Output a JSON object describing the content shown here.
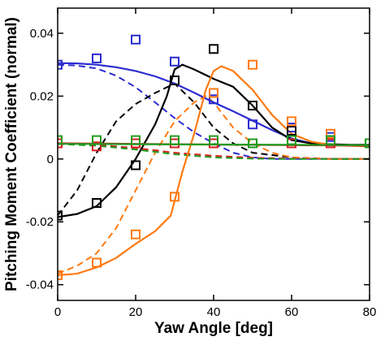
{
  "chart_data": {
    "type": "line",
    "title": "",
    "xlabel": "Yaw Angle [deg]",
    "ylabel": "Pitching Moment Coefficient (normal)",
    "xlim": [
      0,
      80
    ],
    "ylim": [
      -0.045,
      0.048
    ],
    "x_ticks": [
      0,
      20,
      40,
      60,
      80
    ],
    "y_ticks": [
      -0.04,
      -0.02,
      0,
      0.02,
      0.04
    ],
    "x_tick_labels": [
      "0",
      "20",
      "40",
      "60",
      "80"
    ],
    "y_tick_labels": [
      "-0.04",
      "-0.02",
      "0",
      "0.02",
      "0.04"
    ],
    "grid": false,
    "legend": "none",
    "series": [
      {
        "color": "#2c2cd0",
        "solid": [
          [
            0,
            0.0305
          ],
          [
            5,
            0.0304
          ],
          [
            10,
            0.03
          ],
          [
            15,
            0.0292
          ],
          [
            20,
            0.028
          ],
          [
            25,
            0.0263
          ],
          [
            30,
            0.024
          ],
          [
            35,
            0.0211
          ],
          [
            40,
            0.018
          ],
          [
            45,
            0.0152
          ],
          [
            50,
            0.0122
          ],
          [
            55,
            0.0092
          ],
          [
            60,
            0.0065
          ],
          [
            65,
            0.005
          ],
          [
            70,
            0.0045
          ],
          [
            75,
            0.0043
          ],
          [
            80,
            0.0042
          ]
        ],
        "dashed": [
          [
            0,
            0.03
          ],
          [
            5,
            0.0297
          ],
          [
            10,
            0.0288
          ],
          [
            15,
            0.0265
          ],
          [
            20,
            0.0228
          ],
          [
            25,
            0.018
          ],
          [
            30,
            0.013
          ],
          [
            35,
            0.0085
          ],
          [
            40,
            0.005
          ],
          [
            45,
            0.002
          ],
          [
            50,
            0.0005
          ],
          [
            55,
            0.0
          ],
          [
            60,
            0.0
          ],
          [
            70,
            0.0
          ],
          [
            80,
            0.0
          ]
        ],
        "markers": [
          [
            0,
            0.03
          ],
          [
            10,
            0.032
          ],
          [
            20,
            0.038
          ],
          [
            30,
            0.031
          ],
          [
            40,
            0.019
          ],
          [
            50,
            0.011
          ],
          [
            60,
            0.01
          ],
          [
            70,
            0.007
          ],
          [
            80,
            0.005
          ]
        ]
      },
      {
        "color": "#000000",
        "solid": [
          [
            0,
            -0.0185
          ],
          [
            5,
            -0.0175
          ],
          [
            10,
            -0.015
          ],
          [
            15,
            -0.009
          ],
          [
            20,
            0.0
          ],
          [
            25,
            0.011
          ],
          [
            28,
            0.02
          ],
          [
            30,
            0.0285
          ],
          [
            32,
            0.03
          ],
          [
            35,
            0.0285
          ],
          [
            40,
            0.0255
          ],
          [
            45,
            0.023
          ],
          [
            50,
            0.017
          ],
          [
            55,
            0.01
          ],
          [
            60,
            0.006
          ],
          [
            65,
            0.005
          ],
          [
            70,
            0.0047
          ],
          [
            75,
            0.0045
          ],
          [
            80,
            0.0045
          ]
        ],
        "dashed": [
          [
            0,
            -0.018
          ],
          [
            5,
            -0.01
          ],
          [
            10,
            0.002
          ],
          [
            15,
            0.012
          ],
          [
            20,
            0.0175
          ],
          [
            25,
            0.021
          ],
          [
            30,
            0.024
          ],
          [
            35,
            0.018
          ],
          [
            40,
            0.01
          ],
          [
            45,
            0.005
          ],
          [
            50,
            0.002
          ],
          [
            60,
            0.0005
          ],
          [
            70,
            0.0
          ],
          [
            80,
            0.0
          ]
        ],
        "markers": [
          [
            0,
            -0.018
          ],
          [
            10,
            -0.014
          ],
          [
            20,
            -0.002
          ],
          [
            30,
            0.025
          ],
          [
            40,
            0.035
          ],
          [
            50,
            0.017
          ],
          [
            60,
            0.009
          ],
          [
            70,
            0.006
          ],
          [
            80,
            0.005
          ]
        ]
      },
      {
        "color": "#ff7a12",
        "solid": [
          [
            0,
            -0.037
          ],
          [
            5,
            -0.0365
          ],
          [
            10,
            -0.0345
          ],
          [
            15,
            -0.0315
          ],
          [
            20,
            -0.027
          ],
          [
            25,
            -0.023
          ],
          [
            29,
            -0.018
          ],
          [
            32,
            -0.004
          ],
          [
            35,
            0.008
          ],
          [
            38,
            0.022
          ],
          [
            40,
            0.028
          ],
          [
            42,
            0.0295
          ],
          [
            45,
            0.028
          ],
          [
            50,
            0.022
          ],
          [
            55,
            0.014
          ],
          [
            60,
            0.008
          ],
          [
            65,
            0.0055
          ],
          [
            70,
            0.0045
          ],
          [
            75,
            0.0042
          ],
          [
            80,
            0.004
          ]
        ],
        "dashed": [
          [
            0,
            -0.0365
          ],
          [
            5,
            -0.034
          ],
          [
            10,
            -0.03
          ],
          [
            15,
            -0.022
          ],
          [
            20,
            -0.01
          ],
          [
            25,
            0.002
          ],
          [
            30,
            0.012
          ],
          [
            35,
            0.018
          ],
          [
            38,
            0.02
          ],
          [
            40,
            0.018
          ],
          [
            45,
            0.01
          ],
          [
            50,
            0.005
          ],
          [
            55,
            0.002
          ],
          [
            60,
            0.0005
          ],
          [
            70,
            0.0
          ],
          [
            80,
            0.0
          ]
        ],
        "markers": [
          [
            0,
            -0.037
          ],
          [
            10,
            -0.033
          ],
          [
            20,
            -0.024
          ],
          [
            30,
            -0.012
          ],
          [
            40,
            0.021
          ],
          [
            50,
            0.03
          ],
          [
            60,
            0.012
          ],
          [
            70,
            0.008
          ],
          [
            80,
            0.005
          ]
        ]
      },
      {
        "color": "#d62020",
        "solid": [
          [
            0,
            0.005
          ],
          [
            20,
            0.0048
          ],
          [
            40,
            0.0046
          ],
          [
            60,
            0.0044
          ],
          [
            80,
            0.0042
          ]
        ],
        "dashed": [
          [
            0,
            0.005
          ],
          [
            10,
            0.0045
          ],
          [
            20,
            0.0035
          ],
          [
            30,
            0.002
          ],
          [
            40,
            0.001
          ],
          [
            50,
            0.0004
          ],
          [
            60,
            0.0001
          ],
          [
            80,
            0.0
          ]
        ],
        "markers": [
          [
            0,
            0.005
          ],
          [
            10,
            0.004
          ],
          [
            20,
            0.005
          ],
          [
            30,
            0.005
          ],
          [
            40,
            0.005
          ],
          [
            50,
            0.005
          ],
          [
            60,
            0.005
          ],
          [
            70,
            0.005
          ]
        ]
      },
      {
        "color": "#1f9a1f",
        "solid": [
          [
            0,
            0.0048
          ],
          [
            20,
            0.0047
          ],
          [
            40,
            0.0046
          ],
          [
            60,
            0.0045
          ],
          [
            80,
            0.0044
          ]
        ],
        "dashed": [
          [
            0,
            0.0048
          ],
          [
            10,
            0.0042
          ],
          [
            20,
            0.003
          ],
          [
            30,
            0.0015
          ],
          [
            40,
            0.0005
          ],
          [
            50,
            0.0001
          ],
          [
            60,
            0.0
          ],
          [
            80,
            0.0
          ]
        ],
        "markers": [
          [
            0,
            0.006
          ],
          [
            10,
            0.006
          ],
          [
            20,
            0.006
          ],
          [
            30,
            0.006
          ],
          [
            40,
            0.006
          ],
          [
            50,
            0.005
          ],
          [
            60,
            0.006
          ],
          [
            70,
            0.006
          ],
          [
            80,
            0.005
          ]
        ]
      }
    ]
  }
}
